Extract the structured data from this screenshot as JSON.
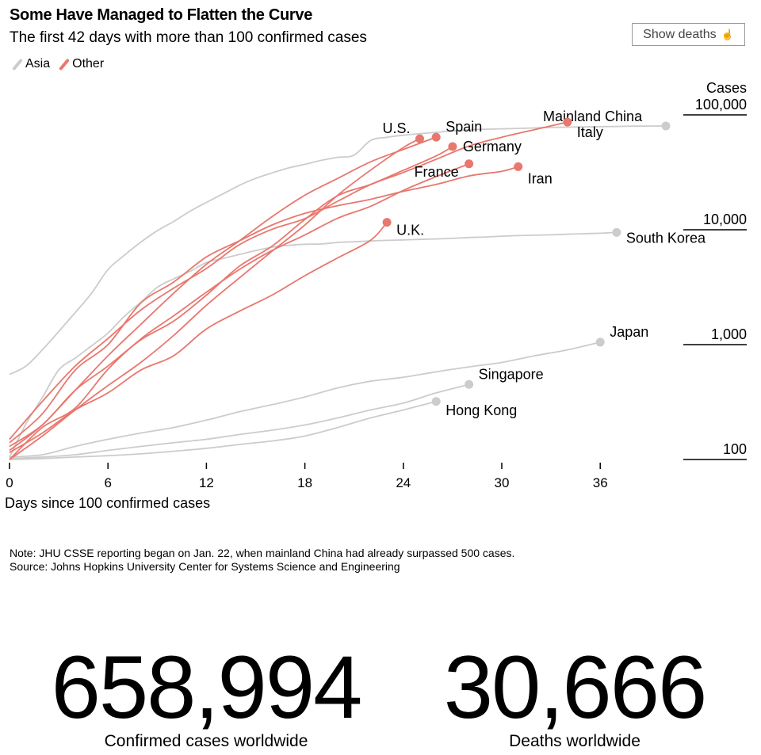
{
  "header": {
    "title": "Some Have Managed to Flatten the Curve",
    "subtitle": "The first 42 days with more than 100 confirmed cases",
    "toggle_label": "Show deaths"
  },
  "legend": [
    {
      "label": "Asia",
      "color": "#cccccc"
    },
    {
      "label": "Other",
      "color": "#e8776e"
    }
  ],
  "chart_data": {
    "type": "line",
    "title": "Some Have Managed to Flatten the Curve",
    "subtitle": "The first 42 days with more than 100 confirmed cases",
    "xlabel": "Days since 100 confirmed cases",
    "ylabel": "Cases",
    "y_scale": "log",
    "xlim": [
      0,
      40
    ],
    "ylim": [
      100,
      100000
    ],
    "x_ticks": [
      0,
      6,
      12,
      18,
      24,
      30,
      36
    ],
    "y_ticks": [
      {
        "value": 100000,
        "label": "100,000"
      },
      {
        "value": 10000,
        "label": "10,000"
      },
      {
        "value": 1000,
        "label": "1,000"
      },
      {
        "value": 100,
        "label": "100"
      }
    ],
    "colors": {
      "Asia": "#cccccc",
      "Other": "#e8776e"
    },
    "series": [
      {
        "name": "Mainland China",
        "group": "Asia",
        "points": [
          [
            0,
            550
          ],
          [
            1,
            650
          ],
          [
            2,
            900
          ],
          [
            3,
            1300
          ],
          [
            4,
            1900
          ],
          [
            5,
            2800
          ],
          [
            6,
            4500
          ],
          [
            7,
            6000
          ],
          [
            8,
            7800
          ],
          [
            9,
            9800
          ],
          [
            10,
            11800
          ],
          [
            11,
            14500
          ],
          [
            12,
            17300
          ],
          [
            13,
            20500
          ],
          [
            14,
            24300
          ],
          [
            15,
            28000
          ],
          [
            16,
            31200
          ],
          [
            17,
            34500
          ],
          [
            18,
            37100
          ],
          [
            19,
            40200
          ],
          [
            20,
            42700
          ],
          [
            21,
            44600
          ],
          [
            22,
            59800
          ],
          [
            23,
            63800
          ],
          [
            24,
            66500
          ],
          [
            25,
            68500
          ],
          [
            26,
            70500
          ],
          [
            27,
            72400
          ],
          [
            28,
            74200
          ],
          [
            29,
            75000
          ],
          [
            30,
            75600
          ],
          [
            31,
            76200
          ],
          [
            32,
            77000
          ],
          [
            33,
            77800
          ],
          [
            34,
            78200
          ],
          [
            35,
            78600
          ],
          [
            36,
            78900
          ],
          [
            37,
            79300
          ],
          [
            38,
            79800
          ],
          [
            39,
            80000
          ],
          [
            40,
            80100
          ]
        ]
      },
      {
        "name": "South Korea",
        "group": "Asia",
        "points": [
          [
            0,
            104
          ],
          [
            1,
            204
          ],
          [
            2,
            346
          ],
          [
            3,
            602
          ],
          [
            4,
            763
          ],
          [
            5,
            977
          ],
          [
            6,
            1261
          ],
          [
            7,
            1766
          ],
          [
            8,
            2337
          ],
          [
            9,
            3150
          ],
          [
            10,
            3736
          ],
          [
            11,
            4335
          ],
          [
            12,
            5186
          ],
          [
            13,
            5621
          ],
          [
            14,
            6088
          ],
          [
            15,
            6593
          ],
          [
            16,
            7041
          ],
          [
            17,
            7314
          ],
          [
            18,
            7478
          ],
          [
            19,
            7513
          ],
          [
            20,
            7755
          ],
          [
            21,
            7869
          ],
          [
            22,
            7979
          ],
          [
            23,
            8086
          ],
          [
            24,
            8162
          ],
          [
            25,
            8236
          ],
          [
            26,
            8320
          ],
          [
            27,
            8413
          ],
          [
            28,
            8565
          ],
          [
            29,
            8652
          ],
          [
            30,
            8799
          ],
          [
            31,
            8897
          ],
          [
            32,
            8961
          ],
          [
            33,
            9037
          ],
          [
            34,
            9137
          ],
          [
            35,
            9241
          ],
          [
            36,
            9332
          ],
          [
            37,
            9478
          ]
        ]
      },
      {
        "name": "Japan",
        "group": "Asia",
        "points": [
          [
            0,
            105
          ],
          [
            2,
            110
          ],
          [
            4,
            130
          ],
          [
            6,
            150
          ],
          [
            8,
            170
          ],
          [
            10,
            190
          ],
          [
            12,
            220
          ],
          [
            14,
            260
          ],
          [
            16,
            300
          ],
          [
            18,
            350
          ],
          [
            20,
            420
          ],
          [
            22,
            480
          ],
          [
            24,
            520
          ],
          [
            26,
            580
          ],
          [
            28,
            640
          ],
          [
            30,
            700
          ],
          [
            32,
            800
          ],
          [
            34,
            900
          ],
          [
            36,
            1050
          ]
        ]
      },
      {
        "name": "Singapore",
        "group": "Asia",
        "points": [
          [
            0,
            102
          ],
          [
            2,
            105
          ],
          [
            4,
            110
          ],
          [
            6,
            120
          ],
          [
            8,
            130
          ],
          [
            10,
            140
          ],
          [
            12,
            150
          ],
          [
            14,
            165
          ],
          [
            16,
            180
          ],
          [
            18,
            200
          ],
          [
            20,
            230
          ],
          [
            22,
            270
          ],
          [
            24,
            310
          ],
          [
            26,
            380
          ],
          [
            28,
            450
          ]
        ]
      },
      {
        "name": "Hong Kong",
        "group": "Asia",
        "points": [
          [
            0,
            100
          ],
          [
            2,
            102
          ],
          [
            4,
            105
          ],
          [
            6,
            108
          ],
          [
            8,
            112
          ],
          [
            10,
            118
          ],
          [
            12,
            125
          ],
          [
            14,
            135
          ],
          [
            16,
            145
          ],
          [
            18,
            160
          ],
          [
            20,
            190
          ],
          [
            22,
            230
          ],
          [
            24,
            270
          ],
          [
            26,
            320
          ]
        ]
      },
      {
        "name": "U.S.",
        "group": "Other",
        "points": [
          [
            0,
            100
          ],
          [
            2,
            160
          ],
          [
            4,
            270
          ],
          [
            6,
            440
          ],
          [
            8,
            700
          ],
          [
            10,
            1200
          ],
          [
            12,
            2200
          ],
          [
            14,
            3800
          ],
          [
            16,
            6500
          ],
          [
            18,
            11000
          ],
          [
            20,
            20000
          ],
          [
            22,
            33000
          ],
          [
            24,
            52000
          ],
          [
            25,
            62000
          ]
        ]
      },
      {
        "name": "Spain",
        "group": "Other",
        "points": [
          [
            0,
            120
          ],
          [
            2,
            200
          ],
          [
            4,
            400
          ],
          [
            6,
            800
          ],
          [
            8,
            1500
          ],
          [
            10,
            2800
          ],
          [
            12,
            5000
          ],
          [
            14,
            8000
          ],
          [
            16,
            13000
          ],
          [
            18,
            20000
          ],
          [
            20,
            28000
          ],
          [
            22,
            39000
          ],
          [
            24,
            50000
          ],
          [
            26,
            64000
          ]
        ]
      },
      {
        "name": "Italy",
        "group": "Other",
        "points": [
          [
            0,
            150
          ],
          [
            2,
            320
          ],
          [
            4,
            650
          ],
          [
            6,
            1130
          ],
          [
            8,
            2000
          ],
          [
            10,
            3100
          ],
          [
            12,
            4600
          ],
          [
            14,
            7400
          ],
          [
            16,
            10100
          ],
          [
            18,
            12500
          ],
          [
            20,
            17700
          ],
          [
            22,
            24700
          ],
          [
            24,
            31500
          ],
          [
            26,
            41000
          ],
          [
            28,
            53500
          ],
          [
            30,
            63900
          ],
          [
            32,
            74400
          ],
          [
            34,
            86500
          ]
        ]
      },
      {
        "name": "Germany",
        "group": "Other",
        "points": [
          [
            0,
            130
          ],
          [
            2,
            200
          ],
          [
            4,
            400
          ],
          [
            6,
            650
          ],
          [
            8,
            1100
          ],
          [
            10,
            1600
          ],
          [
            12,
            2700
          ],
          [
            14,
            4800
          ],
          [
            16,
            7200
          ],
          [
            18,
            12300
          ],
          [
            20,
            19800
          ],
          [
            22,
            24800
          ],
          [
            24,
            32900
          ],
          [
            26,
            43900
          ],
          [
            27,
            53000
          ]
        ]
      },
      {
        "name": "France",
        "group": "Other",
        "points": [
          [
            0,
            100
          ],
          [
            2,
            190
          ],
          [
            4,
            280
          ],
          [
            6,
            610
          ],
          [
            8,
            1120
          ],
          [
            10,
            1780
          ],
          [
            12,
            2860
          ],
          [
            14,
            4500
          ],
          [
            16,
            6600
          ],
          [
            18,
            9000
          ],
          [
            20,
            12600
          ],
          [
            22,
            16000
          ],
          [
            24,
            22000
          ],
          [
            26,
            29000
          ],
          [
            28,
            37500
          ]
        ]
      },
      {
        "name": "Iran",
        "group": "Other",
        "points": [
          [
            0,
            140
          ],
          [
            2,
            250
          ],
          [
            4,
            600
          ],
          [
            6,
            1000
          ],
          [
            8,
            2300
          ],
          [
            10,
            3500
          ],
          [
            12,
            5800
          ],
          [
            14,
            8000
          ],
          [
            16,
            11000
          ],
          [
            18,
            13900
          ],
          [
            20,
            16200
          ],
          [
            22,
            18400
          ],
          [
            24,
            21600
          ],
          [
            26,
            24800
          ],
          [
            28,
            29400
          ],
          [
            30,
            32300
          ],
          [
            31,
            35400
          ]
        ]
      },
      {
        "name": "U.K.",
        "group": "Other",
        "points": [
          [
            0,
            115
          ],
          [
            2,
            170
          ],
          [
            4,
            270
          ],
          [
            6,
            380
          ],
          [
            8,
            600
          ],
          [
            10,
            800
          ],
          [
            12,
            1370
          ],
          [
            14,
            1950
          ],
          [
            16,
            2700
          ],
          [
            18,
            3980
          ],
          [
            20,
            5690
          ],
          [
            22,
            8080
          ],
          [
            23,
            11600
          ]
        ]
      }
    ]
  },
  "note": {
    "line1": "Note: JHU CSSE reporting began on Jan. 22, when mainland China had already surpassed 500 cases.",
    "line2": "Source: Johns Hopkins University Center for Systems Science and Engineering"
  },
  "stats": {
    "cases_value": "658,994",
    "cases_label": "Confirmed cases worldwide",
    "deaths_value": "30,666",
    "deaths_label": "Deaths worldwide"
  }
}
